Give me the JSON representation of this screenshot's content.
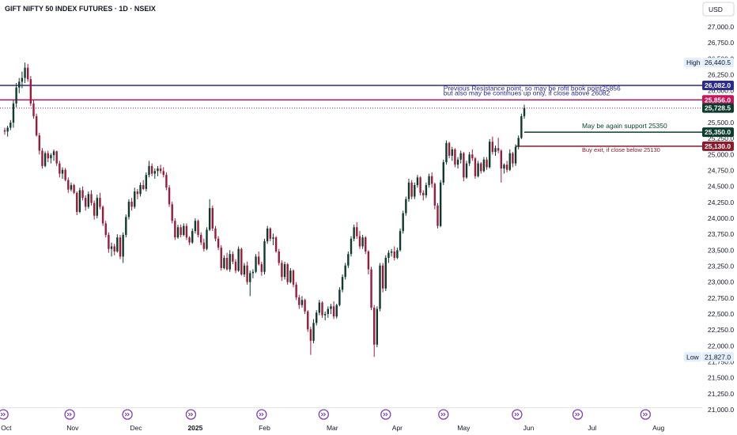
{
  "header": {
    "title": "GIFT NIFTY 50 INDEX FUTURES · 1D · NSEIX",
    "currency_button": "USD"
  },
  "colors": {
    "up": "#089981",
    "down": "#9c1b3a",
    "up_candle_body": "#0e3b2e",
    "resistance_line": "#2b2a8f",
    "profit_line": "#c2185b",
    "support_line": "#0b3d2e",
    "exit_line": "#8b1a2b",
    "dotted_line": "#c2185b"
  },
  "chart_data": {
    "type": "candlestick",
    "yrange": [
      20850,
      27300
    ],
    "y_ticks": [
      "27,000.0",
      "26,750.0",
      "26,500.0",
      "26,250.0",
      "26,000.0",
      "25,750.0",
      "25,500.0",
      "25,250.0",
      "25,000.0",
      "24,750.0",
      "24,500.0",
      "24,250.0",
      "24,000.0",
      "23,750.0",
      "23,500.0",
      "23,250.0",
      "23,000.0",
      "22,750.0",
      "22,500.0",
      "22,250.0",
      "22,000.0",
      "21,750.0",
      "21,500.0",
      "21,250.0",
      "21,000.0"
    ],
    "y_tick_values": [
      27000,
      26750,
      26500,
      26250,
      26000,
      25750,
      25500,
      25250,
      25000,
      24750,
      24500,
      24250,
      24000,
      23750,
      23500,
      23250,
      23000,
      22750,
      22500,
      22250,
      22000,
      21750,
      21500,
      21250,
      21000
    ],
    "x_labels": [
      {
        "label": "Oct",
        "bold": false
      },
      {
        "label": "Nov",
        "bold": false
      },
      {
        "label": "Dec",
        "bold": false
      },
      {
        "label": "2025",
        "bold": true
      },
      {
        "label": "Feb",
        "bold": false
      },
      {
        "label": "Mar",
        "bold": false
      },
      {
        "label": "Apr",
        "bold": false
      },
      {
        "label": "May",
        "bold": false
      },
      {
        "label": "Jun",
        "bold": false
      },
      {
        "label": "Jul",
        "bold": false
      },
      {
        "label": "Aug",
        "bold": false
      }
    ],
    "x_label_positions": [
      0.5,
      23.5,
      45.5,
      66,
      90,
      113.5,
      136,
      159,
      181.5,
      203.5,
      226.5
    ],
    "event_marker_positions": [
      -0.5,
      22.5,
      42.5,
      64.5,
      89,
      110.5,
      132,
      152,
      177.5,
      198.5,
      222
    ],
    "axis_badges": [
      {
        "label": "High",
        "value": "26,440.5",
        "price": 26440.5
      },
      {
        "label": "Low",
        "value": "21,827.0",
        "price": 21827.0
      }
    ],
    "levels": [
      {
        "name": "resistance",
        "price": 26082.0,
        "value": "26,082.0",
        "start_index": -8,
        "color_key": "resistance_line",
        "style": "solid"
      },
      {
        "name": "profit-book",
        "price": 25856.0,
        "value": "25,856.0",
        "start_index": -8,
        "color_key": "profit_line",
        "style": "solid"
      },
      {
        "name": "dotted",
        "price": 25728.5,
        "value": "25,728.5",
        "start_index": -8,
        "color_key": "dotted_line",
        "style": "dotted"
      },
      {
        "name": "support",
        "price": 25350.0,
        "value": "25,350.0",
        "start_index": 180,
        "color_key": "support_line",
        "style": "solid"
      },
      {
        "name": "exit",
        "price": 25130.0,
        "value": "25,130.0",
        "start_index": 177,
        "color_key": "exit_line",
        "style": "solid"
      }
    ],
    "current_price_badge": {
      "value": "25,728.5",
      "price": 25728.5
    },
    "annotations": [
      {
        "text": "Previous Resistance point, so may be rofit book point25856",
        "index": 152,
        "price": 26000,
        "color_key": "resistance_line"
      },
      {
        "text": "but also may be continues up only, if close above 26082",
        "index": 152,
        "price": 25925,
        "color_key": "resistance_line"
      },
      {
        "text": "May be again support 25350",
        "index": 200,
        "price": 25415,
        "color_key": "support_line"
      },
      {
        "text": "Buy exit, if close below 25130",
        "index": 200,
        "price": 25040,
        "color_key": "exit_line"
      }
    ],
    "ohlc": [
      [
        25380,
        25420,
        25310,
        25360
      ],
      [
        25360,
        25450,
        25280,
        25420
      ],
      [
        25420,
        25540,
        25380,
        25500
      ],
      [
        25500,
        25850,
        25420,
        25800
      ],
      [
        25800,
        26120,
        25740,
        26050
      ],
      [
        26050,
        26200,
        25960,
        26140
      ],
      [
        26140,
        26300,
        26040,
        26200
      ],
      [
        26200,
        26440.5,
        26120,
        26360
      ],
      [
        26360,
        26420,
        26140,
        26180
      ],
      [
        26180,
        26230,
        25760,
        25800
      ],
      [
        25800,
        25850,
        25560,
        25600
      ],
      [
        25600,
        25640,
        25280,
        25300
      ],
      [
        25300,
        25340,
        25000,
        25060
      ],
      [
        25060,
        25100,
        24780,
        24820
      ],
      [
        24820,
        25050,
        24800,
        25020
      ],
      [
        25020,
        25060,
        24880,
        24940
      ],
      [
        24940,
        25020,
        24860,
        24990
      ],
      [
        24990,
        25080,
        24900,
        25050
      ],
      [
        25050,
        25060,
        24820,
        24860
      ],
      [
        24860,
        24900,
        24640,
        24700
      ],
      [
        24700,
        24800,
        24620,
        24760
      ],
      [
        24760,
        24790,
        24580,
        24600
      ],
      [
        24600,
        24640,
        24400,
        24450
      ],
      [
        24450,
        24560,
        24420,
        24520
      ],
      [
        24520,
        24540,
        24380,
        24400
      ],
      [
        24400,
        24420,
        24050,
        24100
      ],
      [
        24100,
        24480,
        24080,
        24440
      ],
      [
        24440,
        24500,
        24280,
        24320
      ],
      [
        24320,
        24360,
        24120,
        24180
      ],
      [
        24180,
        24420,
        24150,
        24380
      ],
      [
        24380,
        24440,
        24200,
        24240
      ],
      [
        24240,
        24280,
        23980,
        24040
      ],
      [
        24040,
        24370,
        24000,
        24320
      ],
      [
        24320,
        24400,
        24140,
        24180
      ],
      [
        24180,
        24200,
        23880,
        23920
      ],
      [
        23920,
        23960,
        23700,
        23740
      ],
      [
        23740,
        23780,
        23460,
        23520
      ],
      [
        23520,
        23620,
        23400,
        23560
      ],
      [
        23560,
        23600,
        23420,
        23480
      ],
      [
        23480,
        23750,
        23460,
        23700
      ],
      [
        23700,
        23740,
        23360,
        23400
      ],
      [
        23400,
        23780,
        23300,
        23740
      ],
      [
        23740,
        24060,
        23700,
        24020
      ],
      [
        24020,
        24300,
        23980,
        24260
      ],
      [
        24260,
        24320,
        24120,
        24180
      ],
      [
        24180,
        24480,
        24150,
        24420
      ],
      [
        24420,
        24460,
        24300,
        24380
      ],
      [
        24380,
        24560,
        24340,
        24520
      ],
      [
        24520,
        24600,
        24440,
        24460
      ],
      [
        24460,
        24720,
        24420,
        24680
      ],
      [
        24680,
        24900,
        24640,
        24820
      ],
      [
        24820,
        24860,
        24660,
        24700
      ],
      [
        24700,
        24780,
        24620,
        24740
      ],
      [
        24740,
        24820,
        24660,
        24780
      ],
      [
        24780,
        24840,
        24700,
        24740
      ],
      [
        24740,
        24800,
        24640,
        24680
      ],
      [
        24680,
        24720,
        24440,
        24480
      ],
      [
        24480,
        24520,
        24180,
        24220
      ],
      [
        24220,
        24260,
        23920,
        23960
      ],
      [
        23960,
        24000,
        23660,
        23700
      ],
      [
        23700,
        23900,
        23680,
        23860
      ],
      [
        23860,
        23900,
        23700,
        23740
      ],
      [
        23740,
        23920,
        23720,
        23880
      ],
      [
        23880,
        23920,
        23660,
        23700
      ],
      [
        23700,
        23720,
        23580,
        23620
      ],
      [
        23620,
        23840,
        23600,
        23800
      ],
      [
        23800,
        24000,
        23760,
        23960
      ],
      [
        23960,
        23980,
        23700,
        23740
      ],
      [
        23740,
        23780,
        23580,
        23620
      ],
      [
        23620,
        23680,
        23480,
        23520
      ],
      [
        23520,
        23860,
        23500,
        23820
      ],
      [
        23820,
        24300,
        23800,
        24160
      ],
      [
        24160,
        24200,
        23800,
        23840
      ],
      [
        23840,
        23880,
        23640,
        23680
      ],
      [
        23680,
        23720,
        23500,
        23540
      ],
      [
        23540,
        23580,
        23180,
        23220
      ],
      [
        23220,
        23420,
        23200,
        23380
      ],
      [
        23380,
        23460,
        23180,
        23200
      ],
      [
        23200,
        23500,
        23160,
        23440
      ],
      [
        23440,
        23480,
        23280,
        23320
      ],
      [
        23320,
        23360,
        23140,
        23180
      ],
      [
        23180,
        23560,
        23160,
        23520
      ],
      [
        23520,
        23540,
        23100,
        23120
      ],
      [
        23120,
        23300,
        23080,
        23260
      ],
      [
        23260,
        23320,
        22960,
        23000
      ],
      [
        23000,
        23180,
        22780,
        23140
      ],
      [
        23140,
        23200,
        23060,
        23160
      ],
      [
        23160,
        23440,
        23140,
        23400
      ],
      [
        23400,
        23480,
        23260,
        23280
      ],
      [
        23280,
        23320,
        23100,
        23160
      ],
      [
        23160,
        23680,
        23120,
        23640
      ],
      [
        23640,
        23880,
        23600,
        23840
      ],
      [
        23840,
        23860,
        23640,
        23680
      ],
      [
        23680,
        23760,
        23580,
        23700
      ],
      [
        23700,
        23720,
        23460,
        23480
      ],
      [
        23480,
        23520,
        23260,
        23300
      ],
      [
        23300,
        23340,
        23020,
        23080
      ],
      [
        23080,
        23320,
        23040,
        23280
      ],
      [
        23280,
        23300,
        22960,
        23000
      ],
      [
        23000,
        23220,
        22980,
        23180
      ],
      [
        23180,
        23200,
        22920,
        22960
      ],
      [
        22960,
        23000,
        22720,
        22760
      ],
      [
        22760,
        22800,
        22580,
        22640
      ],
      [
        22640,
        22780,
        22600,
        22720
      ],
      [
        22720,
        22740,
        22500,
        22540
      ],
      [
        22540,
        22560,
        22220,
        22260
      ],
      [
        22260,
        22300,
        21860,
        22080
      ],
      [
        22080,
        22420,
        22040,
        22360
      ],
      [
        22360,
        22560,
        22320,
        22520
      ],
      [
        22520,
        22720,
        22480,
        22680
      ],
      [
        22680,
        22700,
        22440,
        22480
      ],
      [
        22480,
        22540,
        22400,
        22500
      ],
      [
        22500,
        22620,
        22440,
        22580
      ],
      [
        22580,
        22660,
        22500,
        22620
      ],
      [
        22620,
        22700,
        22420,
        22460
      ],
      [
        22460,
        22660,
        22430,
        22640
      ],
      [
        22640,
        22920,
        22620,
        22880
      ],
      [
        22880,
        23120,
        22840,
        23080
      ],
      [
        23080,
        23300,
        23040,
        23260
      ],
      [
        23260,
        23480,
        23220,
        23440
      ],
      [
        23440,
        23720,
        23400,
        23680
      ],
      [
        23680,
        23900,
        23640,
        23860
      ],
      [
        23860,
        23940,
        23680,
        23720
      ],
      [
        23720,
        23800,
        23520,
        23560
      ],
      [
        23560,
        23740,
        23520,
        23700
      ],
      [
        23700,
        23720,
        23440,
        23480
      ],
      [
        23480,
        23500,
        23120,
        23200
      ],
      [
        23200,
        23240,
        22560,
        22600
      ],
      [
        22600,
        22640,
        21827,
        22020
      ],
      [
        22020,
        22620,
        21980,
        22580
      ],
      [
        22580,
        23300,
        22540,
        23260
      ],
      [
        23260,
        23300,
        22840,
        22900
      ],
      [
        22900,
        23420,
        22860,
        23380
      ],
      [
        23380,
        23500,
        23300,
        23460
      ],
      [
        23460,
        23520,
        23400,
        23480
      ],
      [
        23480,
        23560,
        23340,
        23380
      ],
      [
        23380,
        23540,
        23360,
        23500
      ],
      [
        23500,
        23840,
        23480,
        23800
      ],
      [
        23800,
        24120,
        23760,
        24080
      ],
      [
        24080,
        24340,
        24040,
        24300
      ],
      [
        24300,
        24620,
        24260,
        24560
      ],
      [
        24560,
        24600,
        24300,
        24340
      ],
      [
        24340,
        24560,
        24300,
        24520
      ],
      [
        24520,
        24680,
        24480,
        24640
      ],
      [
        24640,
        24660,
        24360,
        24400
      ],
      [
        24400,
        24440,
        24280,
        24360
      ],
      [
        24360,
        24560,
        24320,
        24520
      ],
      [
        24520,
        24700,
        24480,
        24660
      ],
      [
        24660,
        24720,
        24480,
        24540
      ],
      [
        24540,
        24560,
        24140,
        24200
      ],
      [
        24200,
        24240,
        23840,
        23880
      ],
      [
        23880,
        24600,
        23860,
        24560
      ],
      [
        24560,
        24920,
        24520,
        24880
      ],
      [
        24880,
        25220,
        24840,
        25180
      ],
      [
        25180,
        25200,
        24940,
        24980
      ],
      [
        24980,
        25120,
        24900,
        25080
      ],
      [
        25080,
        25100,
        24800,
        24840
      ],
      [
        24840,
        24960,
        24780,
        24920
      ],
      [
        24920,
        25060,
        24860,
        25020
      ],
      [
        25020,
        25040,
        24580,
        24640
      ],
      [
        24640,
        24900,
        24620,
        24860
      ],
      [
        24860,
        25040,
        24820,
        25000
      ],
      [
        25000,
        25080,
        24900,
        24940
      ],
      [
        24940,
        24960,
        24620,
        24660
      ],
      [
        24660,
        24900,
        24640,
        24860
      ],
      [
        24860,
        24880,
        24700,
        24740
      ],
      [
        24740,
        24960,
        24720,
        24920
      ],
      [
        24920,
        24960,
        24760,
        24800
      ],
      [
        24800,
        25240,
        24780,
        25200
      ],
      [
        25200,
        25280,
        25000,
        25040
      ],
      [
        25040,
        25140,
        24980,
        25100
      ],
      [
        25100,
        25260,
        25020,
        25060
      ],
      [
        25060,
        25080,
        24560,
        24780
      ],
      [
        24780,
        24860,
        24700,
        24840
      ],
      [
        24840,
        24900,
        24720,
        24760
      ],
      [
        24760,
        25080,
        24740,
        25020
      ],
      [
        25020,
        25040,
        24800,
        24860
      ],
      [
        24860,
        25160,
        24820,
        25120
      ],
      [
        25120,
        25300,
        25080,
        25260
      ],
      [
        25260,
        25640,
        25240,
        25600
      ],
      [
        25600,
        25780,
        25560,
        25728.5
      ]
    ]
  }
}
